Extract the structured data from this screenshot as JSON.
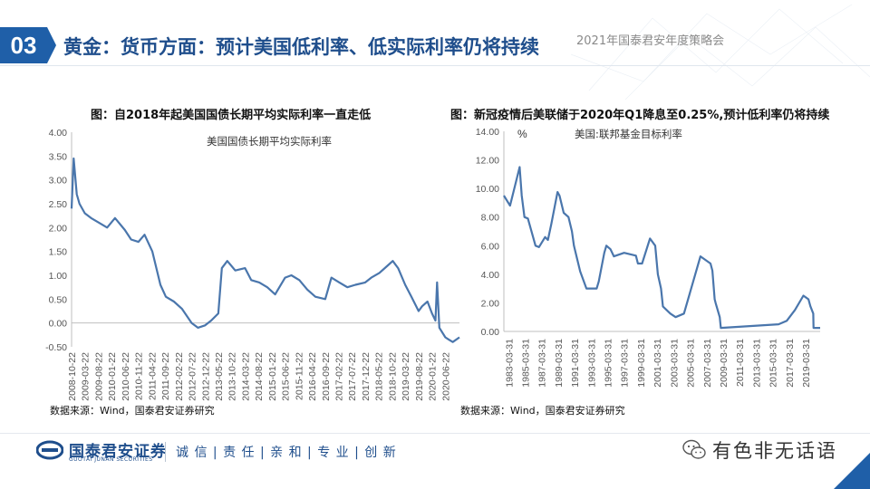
{
  "header": {
    "section_number": "03",
    "title": "黄金：货币方面：预计美国低利率、低实际利率仍将持续",
    "meeting": "2021年国泰君安年度策略会"
  },
  "colors": {
    "brand": "#1f5fa8",
    "title": "#1f4e8c",
    "series": "#4a76ac"
  },
  "chart_data": [
    {
      "type": "line",
      "title": "图：自2018年起美国国债长期平均实际利率一直走低",
      "series_label": "美国国债长期平均实际利率",
      "source": "数据来源：Wind，国泰君安证券研究",
      "ylim": [
        -0.5,
        4.0
      ],
      "yticks": [
        "4.00",
        "3.50",
        "3.00",
        "2.50",
        "2.00",
        "1.50",
        "1.00",
        "0.50",
        "0.00",
        "-0.50"
      ],
      "xticks": [
        "2008-10-22",
        "2009-03-22",
        "2009-08-22",
        "2010-01-22",
        "2010-06-22",
        "2010-11-22",
        "2011-04-22",
        "2011-09-22",
        "2012-02-22",
        "2012-07-22",
        "2012-12-22",
        "2013-05-22",
        "2013-10-22",
        "2014-03-22",
        "2014-08-22",
        "2015-01-22",
        "2015-06-22",
        "2015-11-22",
        "2016-04-22",
        "2016-09-22",
        "2017-02-22",
        "2017-07-22",
        "2017-12-22",
        "2018-05-22",
        "2018-10-22",
        "2019-03-22",
        "2019-08-22",
        "2020-01-22",
        "2020-06-22"
      ],
      "x_range": [
        "2008-10-22",
        "2020-11-30"
      ],
      "series": [
        {
          "x": [
            "2008-10-22",
            "2008-11-15",
            "2008-12-20",
            "2009-01-20",
            "2009-03-22",
            "2009-06-01",
            "2009-09-01",
            "2009-12-01",
            "2010-03-01",
            "2010-06-22",
            "2010-09-01",
            "2010-11-22",
            "2011-02-01",
            "2011-05-01",
            "2011-08-01",
            "2011-10-01",
            "2012-01-01",
            "2012-04-01",
            "2012-07-22",
            "2012-10-01",
            "2012-12-22",
            "2013-03-01",
            "2013-05-22",
            "2013-07-01",
            "2013-09-01",
            "2013-12-01",
            "2014-03-22",
            "2014-06-01",
            "2014-09-01",
            "2014-12-01",
            "2015-03-01",
            "2015-06-22",
            "2015-09-01",
            "2015-12-01",
            "2016-03-01",
            "2016-06-01",
            "2016-09-22",
            "2016-12-01",
            "2017-03-01",
            "2017-06-01",
            "2017-09-01",
            "2017-12-22",
            "2018-03-01",
            "2018-06-01",
            "2018-09-01",
            "2018-11-01",
            "2019-01-01",
            "2019-03-22",
            "2019-06-01",
            "2019-08-22",
            "2019-10-01",
            "2019-12-01",
            "2020-01-22",
            "2020-03-01",
            "2020-03-20",
            "2020-04-15",
            "2020-06-22",
            "2020-08-01",
            "2020-09-15",
            "2020-11-30"
          ],
          "y": [
            2.4,
            3.45,
            2.7,
            2.5,
            2.3,
            2.2,
            2.1,
            2.0,
            2.2,
            1.95,
            1.75,
            1.7,
            1.85,
            1.5,
            0.8,
            0.55,
            0.45,
            0.3,
            0.0,
            -0.1,
            -0.05,
            0.05,
            0.2,
            1.15,
            1.3,
            1.1,
            1.15,
            0.9,
            0.85,
            0.75,
            0.6,
            0.95,
            1.0,
            0.9,
            0.7,
            0.55,
            0.5,
            0.95,
            0.85,
            0.75,
            0.8,
            0.85,
            0.95,
            1.05,
            1.2,
            1.3,
            1.15,
            0.8,
            0.55,
            0.25,
            0.35,
            0.45,
            0.2,
            0.05,
            0.85,
            -0.1,
            -0.3,
            -0.35,
            -0.4,
            -0.3
          ]
        }
      ]
    },
    {
      "type": "line",
      "title": "图：新冠疫情后美联储于2020年Q1降息至0.25%,预计低利率仍将持续",
      "series_label": "美国:联邦基金目标利率",
      "unit": "%",
      "source": "数据来源：Wind，国泰君安证券研究",
      "ylim": [
        0,
        14
      ],
      "yticks": [
        "14.00",
        "12.00",
        "10.00",
        "8.00",
        "6.00",
        "4.00",
        "2.00",
        "0.00"
      ],
      "xticks": [
        "1983-03-31",
        "1985-03-31",
        "1987-03-31",
        "1989-03-31",
        "1991-03-31",
        "1993-03-31",
        "1995-03-31",
        "1997-03-31",
        "1999-03-31",
        "2001-03-31",
        "2003-03-31",
        "2005-03-31",
        "2007-03-31",
        "2009-03-31",
        "2011-03-31",
        "2013-03-31",
        "2015-03-31",
        "2017-03-31",
        "2019-03-31"
      ],
      "x_range": [
        "1982-09-01",
        "2020-12-31"
      ],
      "series": [
        {
          "x": [
            "1982-09-01",
            "1983-06-01",
            "1984-08-01",
            "1984-11-01",
            "1985-03-01",
            "1985-08-01",
            "1986-07-01",
            "1986-12-01",
            "1987-09-01",
            "1988-01-01",
            "1988-06-01",
            "1989-03-01",
            "1989-06-01",
            "1989-12-01",
            "1990-07-01",
            "1990-12-01",
            "1991-03-01",
            "1991-12-01",
            "1992-09-01",
            "1993-12-01",
            "1994-03-01",
            "1994-11-01",
            "1995-02-01",
            "1995-08-01",
            "1996-01-01",
            "1997-03-31",
            "1998-09-01",
            "1998-12-01",
            "1999-06-01",
            "2000-05-16",
            "2001-01-03",
            "2001-05-01",
            "2001-09-17",
            "2001-12-11",
            "2002-11-06",
            "2003-06-25",
            "2004-06-30",
            "2005-06-30",
            "2006-06-29",
            "2007-09-18",
            "2007-12-11",
            "2008-03-18",
            "2008-04-30",
            "2008-10-29",
            "2008-12-16",
            "2015-12-16",
            "2016-12-14",
            "2017-12-13",
            "2018-12-19",
            "2019-07-31",
            "2019-10-30",
            "2020-03-03",
            "2020-03-15",
            "2020-12-31"
          ],
          "y": [
            9.5,
            8.8,
            11.5,
            9.5,
            8.0,
            7.9,
            6.0,
            5.9,
            6.6,
            6.4,
            7.5,
            9.75,
            9.5,
            8.3,
            8.0,
            7.0,
            6.0,
            4.2,
            3.0,
            3.0,
            3.5,
            5.5,
            6.0,
            5.75,
            5.25,
            5.5,
            5.3,
            4.75,
            4.75,
            6.5,
            6.0,
            4.0,
            3.0,
            1.75,
            1.25,
            1.0,
            1.25,
            3.25,
            5.25,
            4.75,
            4.25,
            2.25,
            2.0,
            1.0,
            0.25,
            0.5,
            0.75,
            1.5,
            2.5,
            2.25,
            1.75,
            1.25,
            0.25,
            0.25
          ]
        }
      ]
    }
  ],
  "footer": {
    "company_cn": "国泰君安证券",
    "company_en": "GUOTAI JUNAN SECURITIES",
    "slogan": "诚 信 | 责 任 | 亲 和 | 专 业 | 创 新",
    "watermark": "有色非无话语"
  }
}
